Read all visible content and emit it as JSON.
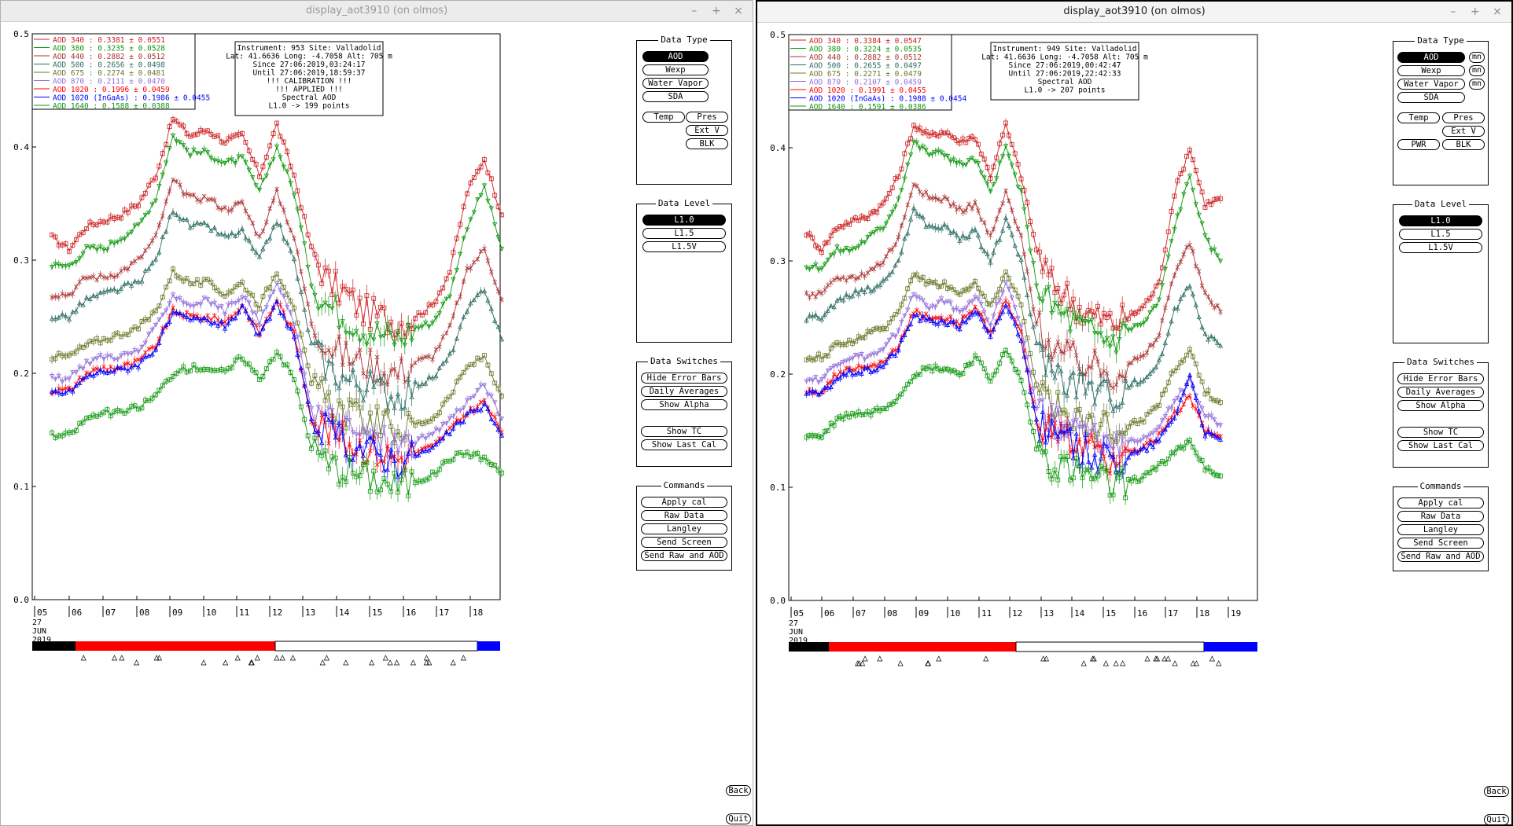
{
  "windows": [
    {
      "title": "display_aot3910 (on olmos)",
      "info": [
        "Instrument: 953 Site: Valladolid",
        "Lat: 41.6636 Long: -4.7058 Alt: 705 m",
        "Since 27:06:2019,03:24:17",
        "Until 27:06:2019,18:59:37",
        "!!! CALIBRATION !!!",
        "!!!   APPLIED   !!!",
        "Spectral AOD",
        "L1.0 -> 199 points"
      ],
      "legend": [
        {
          "label": "AOD 340   : 0.3381 ± 0.0551",
          "color": "#cc2222"
        },
        {
          "label": "AOD 380   : 0.3235 ± 0.0528",
          "color": "#119911"
        },
        {
          "label": "AOD 440   : 0.2882 ± 0.0512",
          "color": "#aa3333"
        },
        {
          "label": "AOD 500   : 0.2656 ± 0.0498",
          "color": "#2f6f63"
        },
        {
          "label": "AOD 675   : 0.2274 ± 0.0481",
          "color": "#6b7a2a"
        },
        {
          "label": "AOD 870   : 0.2111 ± 0.0470",
          "color": "#9370db"
        },
        {
          "label": "AOD 1020  : 0.1996 ± 0.0459",
          "color": "#ff0000"
        },
        {
          "label": "AOD 1020 (InGaAs)  : 0.1986 ± 0.0455",
          "color": "#0000ff"
        },
        {
          "label": "AOD 1640  : 0.1588 ± 0.0388",
          "color": "#119911"
        }
      ],
      "x_ticks": [
        "05",
        "06",
        "07",
        "08",
        "09",
        "10",
        "11",
        "12",
        "13",
        "14",
        "15",
        "16",
        "17",
        "18"
      ],
      "date_label": [
        "27",
        "JUN",
        "2019"
      ]
    },
    {
      "title": "display_aot3910 (on olmos)",
      "info": [
        "Instrument: 949 Site: Valladolid",
        "Lat: 41.6636 Long: -4.7058 Alt: 705 m",
        "Since 27:06:2019,00:42:47",
        "Until 27:06:2019,22:42:33",
        "Spectral AOD",
        "L1.0 -> 207 points"
      ],
      "legend": [
        {
          "label": "AOD 340   : 0.3384 ± 0.0547",
          "color": "#cc2222"
        },
        {
          "label": "AOD 380   : 0.3224 ± 0.0535",
          "color": "#119911"
        },
        {
          "label": "AOD 440   : 0.2882 ± 0.0512",
          "color": "#aa3333"
        },
        {
          "label": "AOD 500   : 0.2655 ± 0.0497",
          "color": "#2f6f63"
        },
        {
          "label": "AOD 675   : 0.2271 ± 0.0479",
          "color": "#6b7a2a"
        },
        {
          "label": "AOD 870   : 0.2107 ± 0.0459",
          "color": "#9370db"
        },
        {
          "label": "AOD 1020  : 0.1991 ± 0.0455",
          "color": "#ff0000"
        },
        {
          "label": "AOD 1020 (InGaAs)  : 0.1988 ± 0.0454",
          "color": "#0000ff"
        },
        {
          "label": "AOD 1640  : 0.1591 ± 0.0386",
          "color": "#119911"
        }
      ],
      "x_ticks": [
        "05",
        "06",
        "07",
        "08",
        "09",
        "10",
        "11",
        "12",
        "13",
        "14",
        "15",
        "16",
        "17",
        "18",
        "19"
      ],
      "date_label": [
        "27",
        "JUN",
        "2019"
      ]
    }
  ],
  "y_ticks": [
    "0.0",
    "0.1",
    "0.2",
    "0.3",
    "0.4",
    "0.5"
  ],
  "controls": {
    "data_type": {
      "title": "Data Type",
      "aod": "AOD",
      "wexp": "Wexp",
      "water_vapor": "Water Vapor",
      "sda": "SDA",
      "temp": "Temp",
      "pres": "Pres",
      "ext_v": "Ext V",
      "blk": "BLK",
      "pwr": "PWR",
      "mn": "mn"
    },
    "data_level": {
      "title": "Data Level",
      "l10": "L1.0",
      "l15": "L1.5",
      "l15v": "L1.5V"
    },
    "data_switches": {
      "title": "Data Switches",
      "hide_error_bars": "Hide Error Bars",
      "daily_averages": "Daily Averages",
      "show_alpha": "Show Alpha",
      "show_tc": "Show TC",
      "show_last_cal": "Show Last Cal"
    },
    "commands": {
      "title": "Commands",
      "apply_cal": "Apply cal",
      "raw_data": "Raw Data",
      "langley": "Langley",
      "send_screen": "Send Screen",
      "send_raw_aod": "Send Raw and AOD"
    },
    "back": "Back",
    "quit": "Quit"
  },
  "chart_data": [
    {
      "type": "line",
      "xlabel": "",
      "ylabel": "",
      "ylim": [
        0,
        0.5
      ],
      "xlim": [
        5,
        19
      ],
      "x": [
        5.5,
        6,
        6.5,
        7,
        7.5,
        8,
        8.5,
        9,
        9.5,
        10,
        10.5,
        11,
        11.5,
        12,
        12.5,
        13,
        13.5,
        14,
        14.5,
        15,
        15.5,
        16,
        16.5,
        17,
        17.5,
        18,
        18.5
      ],
      "series": [
        {
          "name": "AOD 340",
          "values": [
            0.32,
            0.31,
            0.33,
            0.335,
            0.34,
            0.35,
            0.375,
            0.425,
            0.41,
            0.415,
            0.405,
            0.41,
            0.375,
            0.42,
            0.375,
            0.31,
            0.28,
            0.27,
            0.255,
            0.25,
            0.245,
            0.25,
            0.26,
            0.29,
            0.36,
            0.39,
            0.34
          ]
        },
        {
          "name": "AOD 380",
          "values": [
            0.295,
            0.295,
            0.31,
            0.31,
            0.32,
            0.33,
            0.355,
            0.41,
            0.395,
            0.395,
            0.385,
            0.39,
            0.36,
            0.4,
            0.36,
            0.28,
            0.26,
            0.25,
            0.24,
            0.235,
            0.23,
            0.24,
            0.245,
            0.27,
            0.33,
            0.365,
            0.31
          ]
        },
        {
          "name": "AOD 440",
          "values": [
            0.27,
            0.27,
            0.285,
            0.285,
            0.29,
            0.3,
            0.32,
            0.37,
            0.355,
            0.355,
            0.345,
            0.35,
            0.32,
            0.36,
            0.32,
            0.245,
            0.225,
            0.215,
            0.21,
            0.205,
            0.2,
            0.21,
            0.215,
            0.24,
            0.29,
            0.31,
            0.265
          ]
        },
        {
          "name": "AOD 500",
          "values": [
            0.25,
            0.25,
            0.265,
            0.27,
            0.275,
            0.28,
            0.3,
            0.345,
            0.33,
            0.33,
            0.32,
            0.325,
            0.3,
            0.335,
            0.3,
            0.225,
            0.205,
            0.195,
            0.19,
            0.185,
            0.18,
            0.19,
            0.195,
            0.215,
            0.255,
            0.275,
            0.23
          ]
        },
        {
          "name": "AOD 675",
          "values": [
            0.215,
            0.215,
            0.225,
            0.23,
            0.235,
            0.24,
            0.255,
            0.29,
            0.28,
            0.28,
            0.27,
            0.28,
            0.26,
            0.29,
            0.26,
            0.19,
            0.175,
            0.165,
            0.16,
            0.155,
            0.15,
            0.155,
            0.16,
            0.18,
            0.205,
            0.215,
            0.18
          ]
        },
        {
          "name": "AOD 870",
          "values": [
            0.195,
            0.195,
            0.21,
            0.215,
            0.215,
            0.22,
            0.24,
            0.27,
            0.26,
            0.265,
            0.255,
            0.27,
            0.245,
            0.28,
            0.245,
            0.17,
            0.16,
            0.15,
            0.145,
            0.14,
            0.135,
            0.14,
            0.145,
            0.16,
            0.175,
            0.19,
            0.16
          ]
        },
        {
          "name": "AOD 1020",
          "values": [
            0.185,
            0.185,
            0.2,
            0.205,
            0.205,
            0.21,
            0.225,
            0.255,
            0.25,
            0.25,
            0.245,
            0.26,
            0.235,
            0.265,
            0.235,
            0.16,
            0.15,
            0.14,
            0.135,
            0.13,
            0.125,
            0.13,
            0.135,
            0.15,
            0.165,
            0.175,
            0.148
          ]
        },
        {
          "name": "AOD 1020 (InGaAs)",
          "values": [
            0.183,
            0.183,
            0.197,
            0.202,
            0.203,
            0.208,
            0.222,
            0.252,
            0.247,
            0.247,
            0.242,
            0.257,
            0.232,
            0.262,
            0.232,
            0.157,
            0.148,
            0.138,
            0.133,
            0.128,
            0.123,
            0.128,
            0.133,
            0.148,
            0.162,
            0.172,
            0.145
          ]
        },
        {
          "name": "AOD 1640",
          "values": [
            0.145,
            0.145,
            0.16,
            0.165,
            0.165,
            0.17,
            0.18,
            0.2,
            0.205,
            0.205,
            0.2,
            0.215,
            0.195,
            0.22,
            0.195,
            0.135,
            0.12,
            0.115,
            0.11,
            0.105,
            0.1,
            0.105,
            0.11,
            0.125,
            0.13,
            0.125,
            0.112
          ]
        }
      ]
    },
    {
      "type": "line",
      "xlabel": "",
      "ylabel": "",
      "ylim": [
        0,
        0.5
      ],
      "xlim": [
        5,
        20
      ],
      "x": [
        5.5,
        6,
        6.5,
        7,
        7.5,
        8,
        8.5,
        9,
        9.5,
        10,
        10.5,
        11,
        11.5,
        12,
        12.5,
        13,
        13.5,
        14,
        14.5,
        15,
        15.5,
        16,
        16.5,
        17,
        17.5,
        18,
        18.5,
        19
      ],
      "series": [
        {
          "name": "AOD 340",
          "values": [
            0.325,
            0.31,
            0.33,
            0.335,
            0.34,
            0.35,
            0.375,
            0.42,
            0.41,
            0.415,
            0.405,
            0.41,
            0.375,
            0.42,
            0.375,
            0.31,
            0.28,
            0.27,
            0.255,
            0.25,
            0.245,
            0.25,
            0.26,
            0.28,
            0.36,
            0.4,
            0.35,
            0.355
          ]
        },
        {
          "name": "AOD 380",
          "values": [
            0.295,
            0.295,
            0.31,
            0.31,
            0.32,
            0.33,
            0.355,
            0.405,
            0.395,
            0.395,
            0.385,
            0.39,
            0.36,
            0.4,
            0.36,
            0.28,
            0.26,
            0.25,
            0.24,
            0.235,
            0.23,
            0.24,
            0.245,
            0.265,
            0.33,
            0.375,
            0.32,
            0.3
          ]
        },
        {
          "name": "AOD 440",
          "values": [
            0.27,
            0.27,
            0.285,
            0.285,
            0.29,
            0.3,
            0.32,
            0.37,
            0.355,
            0.355,
            0.345,
            0.35,
            0.32,
            0.36,
            0.32,
            0.245,
            0.225,
            0.215,
            0.21,
            0.205,
            0.2,
            0.21,
            0.215,
            0.235,
            0.29,
            0.315,
            0.27,
            0.255
          ]
        },
        {
          "name": "AOD 500",
          "values": [
            0.25,
            0.25,
            0.265,
            0.27,
            0.275,
            0.28,
            0.3,
            0.345,
            0.33,
            0.33,
            0.32,
            0.325,
            0.3,
            0.335,
            0.3,
            0.225,
            0.205,
            0.195,
            0.19,
            0.185,
            0.18,
            0.19,
            0.195,
            0.21,
            0.255,
            0.28,
            0.235,
            0.225
          ]
        },
        {
          "name": "AOD 675",
          "values": [
            0.215,
            0.215,
            0.225,
            0.23,
            0.235,
            0.24,
            0.255,
            0.29,
            0.28,
            0.28,
            0.27,
            0.28,
            0.26,
            0.29,
            0.26,
            0.19,
            0.175,
            0.165,
            0.16,
            0.155,
            0.15,
            0.155,
            0.16,
            0.175,
            0.205,
            0.22,
            0.185,
            0.175
          ]
        },
        {
          "name": "AOD 870",
          "values": [
            0.195,
            0.195,
            0.21,
            0.215,
            0.215,
            0.22,
            0.24,
            0.27,
            0.26,
            0.265,
            0.255,
            0.27,
            0.245,
            0.28,
            0.245,
            0.17,
            0.16,
            0.15,
            0.145,
            0.14,
            0.135,
            0.14,
            0.145,
            0.155,
            0.175,
            0.195,
            0.165,
            0.155
          ]
        },
        {
          "name": "AOD 1020",
          "values": [
            0.185,
            0.185,
            0.2,
            0.205,
            0.205,
            0.21,
            0.225,
            0.255,
            0.25,
            0.25,
            0.245,
            0.26,
            0.235,
            0.265,
            0.235,
            0.16,
            0.15,
            0.14,
            0.135,
            0.13,
            0.125,
            0.13,
            0.135,
            0.145,
            0.165,
            0.18,
            0.15,
            0.145
          ]
        },
        {
          "name": "AOD 1020 (InGaAs)",
          "values": [
            0.183,
            0.183,
            0.197,
            0.202,
            0.203,
            0.208,
            0.222,
            0.252,
            0.247,
            0.247,
            0.242,
            0.257,
            0.232,
            0.262,
            0.232,
            0.157,
            0.148,
            0.138,
            0.133,
            0.128,
            0.123,
            0.128,
            0.133,
            0.142,
            0.162,
            0.2,
            0.147,
            0.142
          ]
        },
        {
          "name": "AOD 1640",
          "values": [
            0.145,
            0.145,
            0.16,
            0.165,
            0.165,
            0.17,
            0.18,
            0.2,
            0.205,
            0.205,
            0.2,
            0.215,
            0.195,
            0.22,
            0.195,
            0.135,
            0.12,
            0.115,
            0.11,
            0.105,
            0.1,
            0.105,
            0.11,
            0.12,
            0.13,
            0.14,
            0.118,
            0.11
          ]
        }
      ]
    }
  ]
}
